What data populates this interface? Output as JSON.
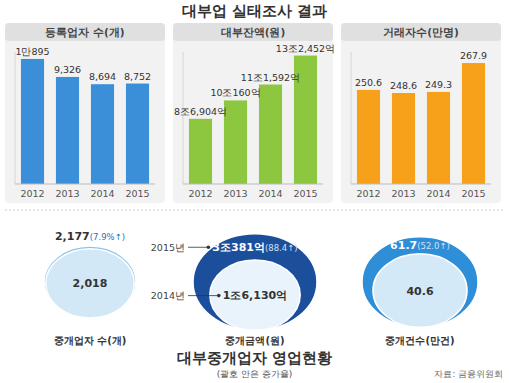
{
  "title": "대부업 실태조사 결과",
  "chart_data": [
    {
      "type": "bar",
      "title": "등록업자 수(개)",
      "categories": [
        "2012",
        "2013",
        "2014",
        "2015"
      ],
      "values": [
        10895,
        9326,
        8694,
        8752
      ],
      "value_labels": [
        "1만895",
        "9,326",
        "8,694",
        "8,752"
      ],
      "color": "#3b8fd8",
      "ylim": [
        0,
        11500
      ],
      "yticks": [],
      "data_labels": true,
      "tick_labels": "x"
    },
    {
      "type": "bar",
      "title": "대부잔액(원)",
      "categories": [
        "2012",
        "2013",
        "2014",
        "2015"
      ],
      "values": [
        86904,
        100160,
        111592,
        132452
      ],
      "value_labels": [
        "8조6,904억",
        "10조160억",
        "11조1,592억",
        "13조2,452억"
      ],
      "color": "#8dc63f",
      "ylim": [
        40000,
        135000
      ],
      "yticks": [],
      "data_labels": true,
      "tick_labels": "x"
    },
    {
      "type": "bar",
      "title": "거래자수(만명)",
      "categories": [
        "2012",
        "2013",
        "2014",
        "2015"
      ],
      "values": [
        250.6,
        248.6,
        249.3,
        267.9
      ],
      "color": "#f7a11a",
      "ylim": [
        190,
        275
      ],
      "yticks": [],
      "data_labels": true,
      "tick_labels": "x"
    },
    {
      "type": "nested_circle",
      "title": "중개업자 수(개)",
      "categories": [
        null,
        null
      ],
      "values": [
        2018,
        2177
      ],
      "value_labels": [
        "2,018",
        "2,177"
      ],
      "growth": {
        "value": 7.9,
        "label": "(7.9%↑)"
      },
      "colors": [
        "#d3e8f7",
        "#8cc3ea"
      ],
      "data_labels": true
    },
    {
      "type": "nested_circle",
      "title": "중개금액(원)",
      "categories": [
        "2014년",
        "2015년"
      ],
      "values": [
        16130,
        30381
      ],
      "value_labels": [
        "1조6,130억",
        "3조381억"
      ],
      "growth": {
        "value": 88.4,
        "label": "(88.4↑)"
      },
      "colors": [
        "#e9f3fb",
        "#1b4f9c"
      ],
      "data_labels": true
    },
    {
      "type": "nested_circle",
      "title": "중개건수(만건)",
      "categories": [
        null,
        null
      ],
      "values": [
        40.6,
        61.7
      ],
      "growth": {
        "value": 52.0,
        "label": "(52.0↑)"
      },
      "colors": [
        "#d3e9f8",
        "#2f8ed8"
      ],
      "data_labels": true
    }
  ],
  "footer": {
    "title": "대부중개업자 영업현황",
    "subtitle": "(괄호 안은 증가율)",
    "source": "자료: 금융위원회"
  }
}
